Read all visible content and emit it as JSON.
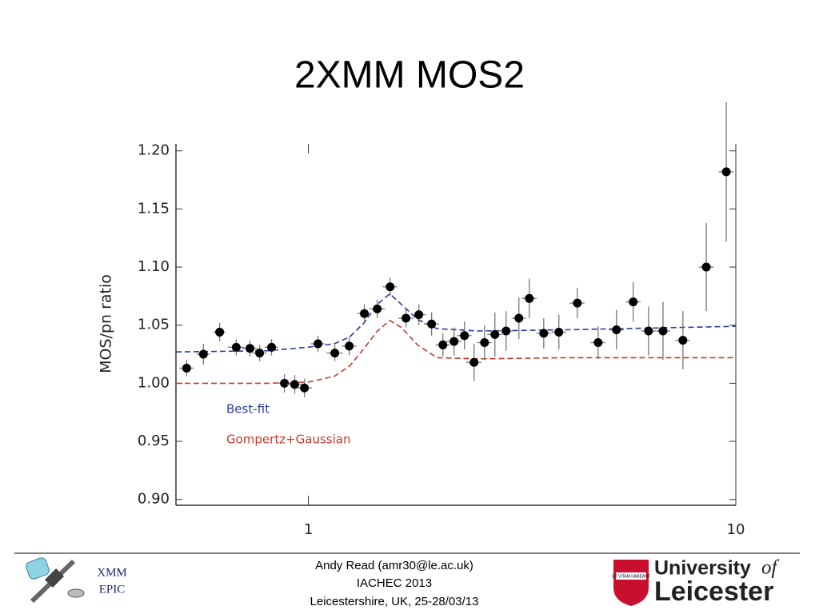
{
  "chart_data": {
    "type": "scatter",
    "title": "2XMM MOS2",
    "ylabel": "MOS/pn ratio",
    "xlog": true,
    "xlim": [
      0.49,
      10
    ],
    "xticks": [
      1,
      10
    ],
    "ylim": [
      0.895,
      1.206
    ],
    "yticks": [
      {
        "value": 0.9,
        "label": "0.90"
      },
      0.95,
      {
        "value": 1.0,
        "label": "1.00"
      },
      1.05,
      {
        "value": 1.1,
        "label": "1.10"
      },
      1.15,
      {
        "value": 1.2,
        "label": "1.20"
      }
    ],
    "points": {
      "color": "#000000",
      "x": [
        0.519,
        0.568,
        0.62,
        0.678,
        0.73,
        0.769,
        0.82,
        0.879,
        0.929,
        0.979,
        1.053,
        1.153,
        1.246,
        1.352,
        1.449,
        1.553,
        1.692,
        1.813,
        1.942,
        2.064,
        2.192,
        2.318,
        2.441,
        2.583,
        2.731,
        2.901,
        3.108,
        3.288,
        3.553,
        3.855,
        4.258,
        4.763,
        5.258,
        5.754,
        6.25,
        6.755,
        7.52,
        8.53,
        9.5
      ],
      "xerr": [
        0.02,
        0.02,
        0.02,
        0.03,
        0.03,
        0.03,
        0.03,
        0.03,
        0.04,
        0.04,
        0.04,
        0.05,
        0.05,
        0.05,
        0.06,
        0.06,
        0.07,
        0.07,
        0.08,
        0.08,
        0.09,
        0.09,
        0.1,
        0.1,
        0.11,
        0.12,
        0.12,
        0.13,
        0.14,
        0.15,
        0.17,
        0.19,
        0.21,
        0.23,
        0.25,
        0.27,
        0.3,
        0.34,
        0.38
      ],
      "y": [
        1.013,
        1.025,
        1.044,
        1.031,
        1.03,
        1.026,
        1.031,
        1.0,
        0.999,
        0.996,
        1.034,
        1.026,
        1.032,
        1.06,
        1.064,
        1.083,
        1.056,
        1.059,
        1.051,
        1.033,
        1.036,
        1.041,
        1.018,
        1.035,
        1.042,
        1.045,
        1.056,
        1.073,
        1.043,
        1.044,
        1.069,
        1.035,
        1.046,
        1.07,
        1.045,
        1.045,
        1.037,
        1.1,
        1.182
      ],
      "yerr": [
        0.007,
        0.009,
        0.008,
        0.007,
        0.007,
        0.007,
        0.007,
        0.008,
        0.008,
        0.008,
        0.007,
        0.007,
        0.008,
        0.008,
        0.008,
        0.008,
        0.008,
        0.009,
        0.01,
        0.01,
        0.012,
        0.012,
        0.016,
        0.015,
        0.019,
        0.017,
        0.018,
        0.017,
        0.013,
        0.015,
        0.013,
        0.014,
        0.017,
        0.017,
        0.021,
        0.025,
        0.025,
        0.038,
        0.06
      ]
    },
    "lines": [
      {
        "name": "Best-fit",
        "color": "#2b3b9c",
        "x": [
          0.49,
          0.8,
          1.0,
          1.15,
          1.25,
          1.35,
          1.45,
          1.55,
          1.65,
          1.8,
          2.0,
          2.5,
          4,
          10
        ],
        "values": [
          1.027,
          1.028,
          1.031,
          1.034,
          1.04,
          1.052,
          1.068,
          1.077,
          1.068,
          1.055,
          1.047,
          1.045,
          1.046,
          1.049
        ]
      },
      {
        "name": "Gompertz+Gaussian",
        "color": "#c8382c",
        "x": [
          0.49,
          0.8,
          1.0,
          1.15,
          1.25,
          1.35,
          1.45,
          1.55,
          1.65,
          1.8,
          2.0,
          2.5,
          4,
          10
        ],
        "values": [
          1.0,
          1.0,
          1.001,
          1.006,
          1.015,
          1.03,
          1.045,
          1.054,
          1.048,
          1.033,
          1.022,
          1.021,
          1.022,
          1.022
        ]
      }
    ]
  },
  "footer": {
    "lines": [
      "Andy Read (amr30@le.ac.uk)",
      "IACHEC 2013",
      "Leicestershire, UK, 25-28/03/13"
    ],
    "left_logo": [
      "XMM",
      "EPIC"
    ],
    "right_logo": {
      "line1": "University",
      "of": "of",
      "line2": "Leicester",
      "motto": "UT VITAM HABEANT"
    }
  }
}
